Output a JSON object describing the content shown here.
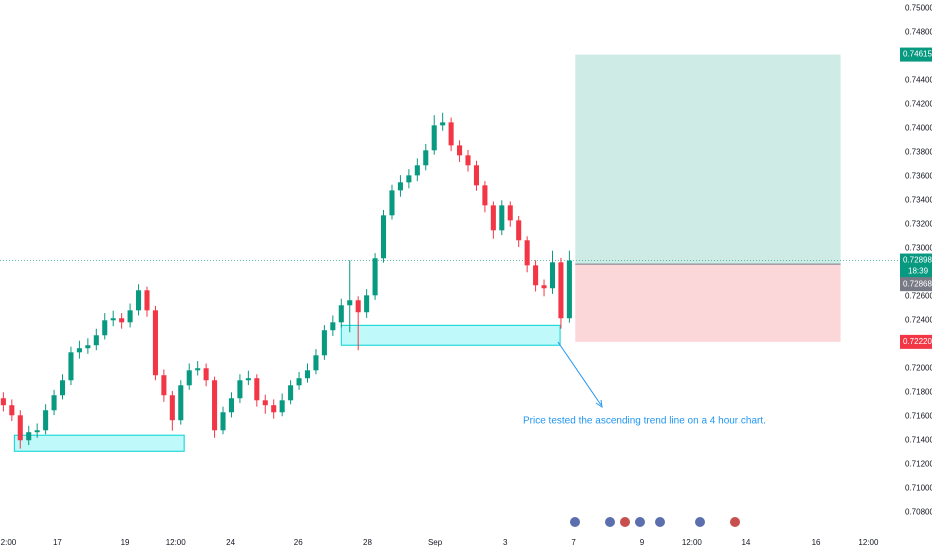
{
  "chart_data": {
    "type": "candlestick",
    "up_color": "#089981",
    "down_color": "#f23645",
    "open": [
      0.7175,
      0.71692,
      0.71608,
      0.714,
      0.71467,
      0.71483,
      0.7165,
      0.71775,
      0.719,
      0.72133,
      0.72167,
      0.72192,
      0.72275,
      0.724,
      0.72417,
      0.72383,
      0.72483,
      0.7265,
      0.72483,
      0.71942,
      0.71775,
      0.71567,
      0.71858,
      0.71983,
      0.72,
      0.719,
      0.71483,
      0.71633,
      0.7175,
      0.719,
      0.71917,
      0.71733,
      0.71692,
      0.71633,
      0.71733,
      0.71858,
      0.71917,
      0.71983,
      0.72108,
      0.72317,
      0.72383,
      0.72525,
      0.72567,
      0.72467,
      0.72608,
      0.72917,
      0.73275,
      0.73483,
      0.7355,
      0.73608,
      0.73692,
      0.73817,
      0.74025,
      0.7405,
      0.73858,
      0.73775,
      0.73692,
      0.73525,
      0.73358,
      0.7315,
      0.73358,
      0.73233,
      0.73067,
      0.72858,
      0.72692,
      0.72667,
      0.72883,
      0.72417
    ],
    "high": [
      0.718,
      0.7174,
      0.7165,
      0.7152,
      0.7154,
      0.717,
      0.7182,
      0.7195,
      0.7218,
      0.7223,
      0.7225,
      0.7233,
      0.7246,
      0.7248,
      0.7246,
      0.7254,
      0.727,
      0.7268,
      0.7252,
      0.7199,
      0.7181,
      0.719,
      0.7204,
      0.7206,
      0.7204,
      0.7193,
      0.7168,
      0.718,
      0.7195,
      0.7198,
      0.7195,
      0.7178,
      0.7174,
      0.7179,
      0.719,
      0.7197,
      0.7204,
      0.7216,
      0.7236,
      0.7244,
      0.7258,
      0.729,
      0.726,
      0.7266,
      0.7296,
      0.7332,
      0.7353,
      0.7361,
      0.7366,
      0.7375,
      0.7387,
      0.7411,
      0.7413,
      0.7409,
      0.739,
      0.7382,
      0.7373,
      0.7356,
      0.7339,
      0.734,
      0.7339,
      0.7327,
      0.731,
      0.729,
      0.7274,
      0.7298,
      0.7292,
      0.7298
    ],
    "low": [
      0.7164,
      0.7156,
      0.7133,
      0.7136,
      0.7142,
      0.7145,
      0.7161,
      0.7174,
      0.7186,
      0.7208,
      0.7212,
      0.7215,
      0.7224,
      0.7235,
      0.7233,
      0.7234,
      0.7244,
      0.7243,
      0.719,
      0.7172,
      0.7148,
      0.7153,
      0.7182,
      0.7194,
      0.7185,
      0.7142,
      0.7145,
      0.7159,
      0.7171,
      0.7186,
      0.7168,
      0.7162,
      0.7158,
      0.716,
      0.717,
      0.7182,
      0.7188,
      0.7195,
      0.7207,
      0.7227,
      0.7234,
      0.723,
      0.7215,
      0.7242,
      0.7257,
      0.7288,
      0.7324,
      0.7343,
      0.735,
      0.7356,
      0.7365,
      0.7378,
      0.7398,
      0.7381,
      0.7372,
      0.7364,
      0.7348,
      0.733,
      0.7308,
      0.7311,
      0.7318,
      0.7301,
      0.728,
      0.7264,
      0.726,
      0.7262,
      0.7233,
      0.7238
    ],
    "close": [
      0.71692,
      0.71608,
      0.714,
      0.71467,
      0.71483,
      0.7165,
      0.71775,
      0.719,
      0.72133,
      0.72167,
      0.72192,
      0.72275,
      0.724,
      0.72417,
      0.72383,
      0.72483,
      0.7265,
      0.72483,
      0.71942,
      0.71775,
      0.71567,
      0.71858,
      0.71983,
      0.72,
      0.719,
      0.71483,
      0.71633,
      0.7175,
      0.719,
      0.71917,
      0.71733,
      0.71692,
      0.71633,
      0.71733,
      0.71858,
      0.71917,
      0.71983,
      0.72108,
      0.72317,
      0.72383,
      0.72525,
      0.72567,
      0.72467,
      0.72608,
      0.72917,
      0.73275,
      0.73483,
      0.7355,
      0.73608,
      0.73692,
      0.73817,
      0.74025,
      0.7405,
      0.73858,
      0.73775,
      0.73692,
      0.73525,
      0.73358,
      0.7315,
      0.73358,
      0.73233,
      0.73067,
      0.72858,
      0.72692,
      0.72667,
      0.72883,
      0.72417,
      0.72898
    ],
    "xlim": [
      -0.4,
      105.9
    ],
    "xticks": [
      {
        "value": 0.6,
        "label": "2:00"
      },
      {
        "value": 6.4,
        "label": "17"
      },
      {
        "value": 14.4,
        "label": "19"
      },
      {
        "value": 20.4,
        "label": "12:00"
      },
      {
        "value": 26.9,
        "label": "24"
      },
      {
        "value": 34.9,
        "label": "26"
      },
      {
        "value": 43.1,
        "label": "28"
      },
      {
        "value": 51.1,
        "label": "Sep"
      },
      {
        "value": 59.4,
        "label": "3"
      },
      {
        "value": 67.5,
        "label": "7"
      },
      {
        "value": 75.6,
        "label": "9"
      },
      {
        "value": 81.5,
        "label": "12:00"
      },
      {
        "value": 87.9,
        "label": "14"
      },
      {
        "value": 96.2,
        "label": "16"
      },
      {
        "value": 102.4,
        "label": "12:00"
      }
    ],
    "ylim": [
      0.7061,
      0.7507
    ],
    "yticks": [
      {
        "value": 0.708,
        "label": "0.70800"
      },
      {
        "value": 0.71,
        "label": "0.71000"
      },
      {
        "value": 0.712,
        "label": "0.71200"
      },
      {
        "value": 0.714,
        "label": "0.71400"
      },
      {
        "value": 0.716,
        "label": "0.71600"
      },
      {
        "value": 0.718,
        "label": "0.71800"
      },
      {
        "value": 0.72,
        "label": "0.72000"
      },
      {
        "value": 0.724,
        "label": "0.72400"
      },
      {
        "value": 0.726,
        "label": "0.72600"
      },
      {
        "value": 0.73,
        "label": "0.73000"
      },
      {
        "value": 0.732,
        "label": "0.73200"
      },
      {
        "value": 0.734,
        "label": "0.73400"
      },
      {
        "value": 0.736,
        "label": "0.73600"
      },
      {
        "value": 0.738,
        "label": "0.73800"
      },
      {
        "value": 0.74,
        "label": "0.74000"
      },
      {
        "value": 0.742,
        "label": "0.74200"
      },
      {
        "value": 0.744,
        "label": "0.74400"
      },
      {
        "value": 0.748,
        "label": "0.74800"
      },
      {
        "value": 0.75,
        "label": "0.75000"
      }
    ],
    "current_price": {
      "value": 0.72898,
      "label": "0.72898"
    },
    "countdown": "18:39",
    "zones": [
      {
        "x": [
          1.3,
          21.4
        ],
        "y": [
          0.71442,
          0.71308
        ]
      },
      {
        "x": [
          40,
          65.9
        ],
        "y": [
          0.72358,
          0.72192
        ]
      }
    ],
    "position": {
      "x": [
        67.7,
        99.1
      ],
      "target": {
        "value": 0.74615,
        "label": "0.74615"
      },
      "entry": {
        "value": 0.72868,
        "label": "0.72868"
      },
      "stop": {
        "value": 0.7222,
        "label": "0.72220"
      }
    },
    "annotation": "Price tested the ascending trend line on a 4 hour chart."
  }
}
